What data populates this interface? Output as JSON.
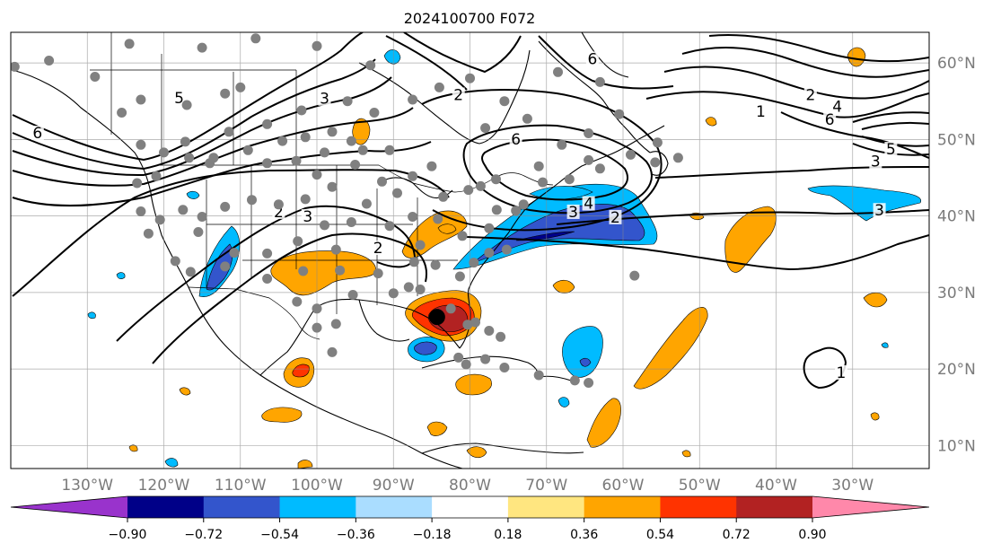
{
  "map": {
    "title": "2024100700 F072",
    "projection": "plate-carree",
    "extent": {
      "lon": [
        -140,
        -20
      ],
      "lat": [
        7,
        64
      ]
    },
    "grid": true,
    "lon_labels": [
      {
        "lon": -130,
        "text": "130°W"
      },
      {
        "lon": -120,
        "text": "120°W"
      },
      {
        "lon": -110,
        "text": "110°W"
      },
      {
        "lon": -100,
        "text": "100°W"
      },
      {
        "lon": -90,
        "text": "90°W"
      },
      {
        "lon": -80,
        "text": "80°W"
      },
      {
        "lon": -70,
        "text": "70°W"
      },
      {
        "lon": -60,
        "text": "60°W"
      },
      {
        "lon": -50,
        "text": "50°W"
      },
      {
        "lon": -40,
        "text": "40°W"
      },
      {
        "lon": -30,
        "text": "30°W"
      }
    ],
    "lat_labels": [
      {
        "lat": 60,
        "text": "60°N"
      },
      {
        "lat": 50,
        "text": "50°N"
      },
      {
        "lat": 40,
        "text": "40°N"
      },
      {
        "lat": 30,
        "text": "30°N"
      },
      {
        "lat": 20,
        "text": "20°N"
      },
      {
        "lat": 10,
        "text": "10°N"
      }
    ],
    "storm_center": {
      "lon": -84.3,
      "lat": 26.8
    },
    "station_markers": [
      [
        -139.5,
        59.5
      ],
      [
        -135,
        60.3
      ],
      [
        -129,
        58.2
      ],
      [
        -124.5,
        62.5
      ],
      [
        -115,
        62
      ],
      [
        -108,
        63.2
      ],
      [
        -100,
        62.2
      ],
      [
        -93,
        59.7
      ],
      [
        -125.5,
        53.5
      ],
      [
        -123,
        55.2
      ],
      [
        -117,
        54.5
      ],
      [
        -112,
        56
      ],
      [
        -110,
        56.8
      ],
      [
        -106.5,
        52
      ],
      [
        -102,
        53.8
      ],
      [
        -98,
        51
      ],
      [
        -96,
        55
      ],
      [
        -92.5,
        53.5
      ],
      [
        -87.5,
        55.2
      ],
      [
        -84,
        56.8
      ],
      [
        -80,
        58
      ],
      [
        -78,
        51.5
      ],
      [
        -75.5,
        55
      ],
      [
        -72.5,
        52.7
      ],
      [
        -68.5,
        58.8
      ],
      [
        -63,
        57.5
      ],
      [
        -60.5,
        53.3
      ],
      [
        -64.5,
        50.8
      ],
      [
        -68,
        49.3
      ],
      [
        -71,
        46.5
      ],
      [
        -64.5,
        47.3
      ],
      [
        -59,
        48
      ],
      [
        -55.5,
        49.6
      ],
      [
        -55.8,
        47
      ],
      [
        -52.8,
        47.6
      ],
      [
        -123,
        49.3
      ],
      [
        -120,
        48.3
      ],
      [
        -117.2,
        49.7
      ],
      [
        -113.5,
        47.6
      ],
      [
        -111.5,
        51
      ],
      [
        -109,
        48.6
      ],
      [
        -104.5,
        49.8
      ],
      [
        -101.5,
        50.3
      ],
      [
        -99,
        48.3
      ],
      [
        -95.5,
        49.8
      ],
      [
        -94,
        48.6
      ],
      [
        -90.5,
        48.6
      ],
      [
        -85,
        46.5
      ],
      [
        -87.5,
        45.2
      ],
      [
        -91.5,
        44.5
      ],
      [
        -95,
        46.7
      ],
      [
        -100,
        45.4
      ],
      [
        -102.7,
        47.2
      ],
      [
        -106.5,
        46.9
      ],
      [
        -114,
        46.9
      ],
      [
        -116.7,
        47.6
      ],
      [
        -121,
        45.2
      ],
      [
        -123.5,
        44.3
      ],
      [
        -123,
        40.6
      ],
      [
        -120.5,
        39.5
      ],
      [
        -117.5,
        40.8
      ],
      [
        -115,
        39.9
      ],
      [
        -112,
        41.2
      ],
      [
        -108.5,
        42.1
      ],
      [
        -105,
        41.5
      ],
      [
        -101.5,
        42.2
      ],
      [
        -98,
        43.8
      ],
      [
        -93.5,
        41.6
      ],
      [
        -89.5,
        43
      ],
      [
        -87.5,
        39.9
      ],
      [
        -83.5,
        42.5
      ],
      [
        -80.2,
        43.4
      ],
      [
        -78.6,
        43.9
      ],
      [
        -76.6,
        44.8
      ],
      [
        -73,
        41.5
      ],
      [
        -70.5,
        44.4
      ],
      [
        -67,
        44.8
      ],
      [
        -63,
        46.2
      ],
      [
        -122,
        37.7
      ],
      [
        -118.5,
        34.1
      ],
      [
        -115.5,
        37.9
      ],
      [
        -110.8,
        35.2
      ],
      [
        -106.5,
        35.1
      ],
      [
        -102.5,
        36.7
      ],
      [
        -99,
        38.8
      ],
      [
        -97.5,
        35.6
      ],
      [
        -95.5,
        39.2
      ],
      [
        -90.5,
        38.7
      ],
      [
        -86.5,
        36.2
      ],
      [
        -84.2,
        39.6
      ],
      [
        -81,
        37.4
      ],
      [
        -77.5,
        38.4
      ],
      [
        -76.5,
        40.8
      ],
      [
        -74,
        40.7
      ],
      [
        -116.5,
        32.7
      ],
      [
        -112,
        33.4
      ],
      [
        -106.5,
        31.8
      ],
      [
        -101.8,
        32.8
      ],
      [
        -97,
        32.9
      ],
      [
        -95.3,
        29.7
      ],
      [
        -92,
        32.5
      ],
      [
        -90,
        29.9
      ],
      [
        -88,
        30.7
      ],
      [
        -84.5,
        33.6
      ],
      [
        -81.3,
        32.1
      ],
      [
        -79.5,
        33.9
      ],
      [
        -77.5,
        35.2
      ],
      [
        -75.2,
        35.6
      ],
      [
        -86.5,
        30.4
      ],
      [
        -97.5,
        25.9
      ],
      [
        -100,
        27.9
      ],
      [
        -102.6,
        28.8
      ],
      [
        -100,
        25.4
      ],
      [
        -98,
        22.2
      ],
      [
        -87.3,
        34
      ],
      [
        -82.5,
        27.9
      ],
      [
        -80.3,
        25.8
      ],
      [
        -79.3,
        26.1
      ],
      [
        -76,
        24.2
      ],
      [
        -77.5,
        25
      ],
      [
        -81.5,
        21.5
      ],
      [
        -80.5,
        20.6
      ],
      [
        -78,
        21.3
      ],
      [
        -75.5,
        20.2
      ],
      [
        -71,
        19.2
      ],
      [
        -66.3,
        18.5
      ],
      [
        -64.5,
        18.2
      ],
      [
        -58.5,
        32.2
      ]
    ],
    "contours": [
      {
        "text": "5",
        "lon": -118,
        "lat": 55.1
      },
      {
        "text": "3",
        "lon": -99,
        "lat": 55
      },
      {
        "text": "6",
        "lon": -136.5,
        "lat": 50.5
      },
      {
        "text": "2",
        "lon": -81.5,
        "lat": 55.5
      },
      {
        "text": "6",
        "lon": -74,
        "lat": 49.7
      },
      {
        "text": "6",
        "lon": -64,
        "lat": 60.2
      },
      {
        "text": "1",
        "lon": -42,
        "lat": 53.3
      },
      {
        "text": "2",
        "lon": -35.5,
        "lat": 55.5
      },
      {
        "text": "4",
        "lon": -32,
        "lat": 54
      },
      {
        "text": "6",
        "lon": -33,
        "lat": 52.3
      },
      {
        "text": "5",
        "lon": -25,
        "lat": 48.4
      },
      {
        "text": "3",
        "lon": -27,
        "lat": 46.8
      },
      {
        "text": "3",
        "lon": -26.5,
        "lat": 40.4
      },
      {
        "text": "2",
        "lon": -105,
        "lat": 40.2
      },
      {
        "text": "3",
        "lon": -101.2,
        "lat": 39.6
      },
      {
        "text": "2",
        "lon": -92,
        "lat": 35.5
      },
      {
        "text": "2",
        "lon": -61,
        "lat": 39.5
      },
      {
        "text": "4",
        "lon": -64.5,
        "lat": 41.3
      },
      {
        "text": "3",
        "lon": -66.5,
        "lat": 40.2
      },
      {
        "text": "1",
        "lon": -31.5,
        "lat": 19.2
      }
    ]
  },
  "colorbar": {
    "colors": [
      "#9933cc",
      "#000088",
      "#3355cc",
      "#00bbff",
      "#aaddff",
      "#ffffff",
      "#ffe680",
      "#ffa500",
      "#ff3300",
      "#b22222",
      "#ff88aa"
    ],
    "tick_labels": [
      "−0.90",
      "−0.72",
      "−0.54",
      "−0.36",
      "−0.18",
      "0.18",
      "0.36",
      "0.54",
      "0.72",
      "0.90"
    ]
  },
  "colors": {
    "blue_dark": "#3355cc",
    "blue_mid": "#00bbff",
    "blue_light": "#aaddff",
    "orange": "#ffa500",
    "red_orange": "#ff3300",
    "dark_red": "#b22222",
    "yellow": "#ffe680",
    "navy": "#000088"
  }
}
